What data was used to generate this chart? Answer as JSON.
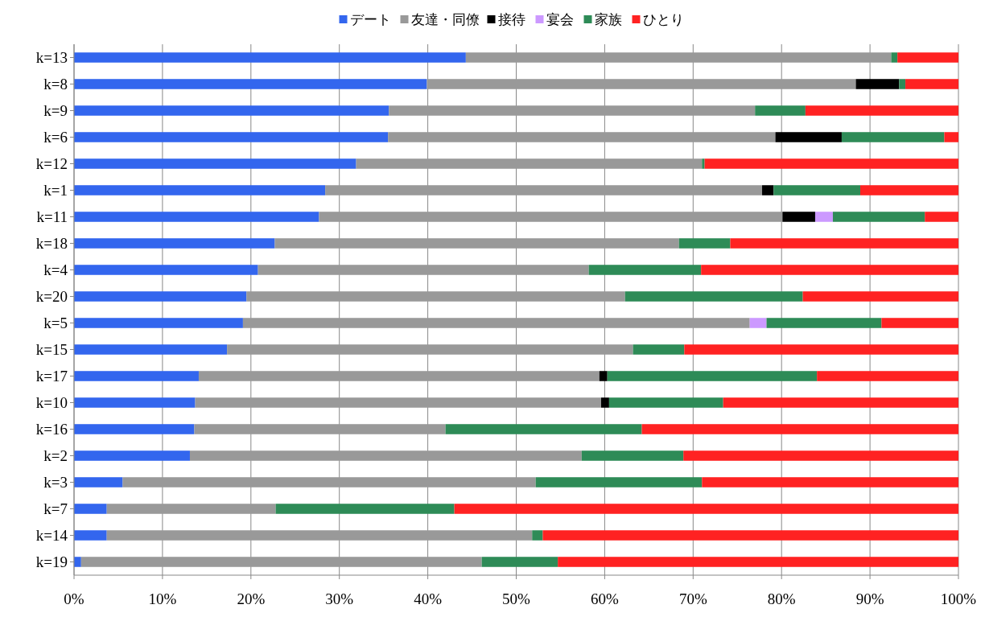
{
  "chart_data": {
    "type": "bar",
    "orientation": "horizontal",
    "stacked": true,
    "categories": [
      "k=13",
      "k=8",
      "k=9",
      "k=6",
      "k=12",
      "k=1",
      "k=11",
      "k=18",
      "k=4",
      "k=20",
      "k=5",
      "k=15",
      "k=17",
      "k=10",
      "k=16",
      "k=2",
      "k=3",
      "k=7",
      "k=14",
      "k=19"
    ],
    "series": [
      {
        "name": "デート",
        "color": "#3366ee",
        "values": [
          44.3,
          39.9,
          35.6,
          35.5,
          31.9,
          28.4,
          27.7,
          22.7,
          20.8,
          19.5,
          19.1,
          17.3,
          14.1,
          13.7,
          13.6,
          13.1,
          5.5,
          3.7,
          3.7,
          0.8
        ]
      },
      {
        "name": "友達・同僚",
        "color": "#999999",
        "values": [
          48.1,
          48.5,
          41.4,
          43.8,
          39.1,
          49.4,
          52.4,
          45.7,
          37.4,
          42.8,
          57.3,
          45.9,
          45.3,
          45.9,
          28.4,
          44.3,
          46.7,
          19.1,
          48.1,
          45.3
        ]
      },
      {
        "name": "接待",
        "color": "#000000",
        "values": [
          0,
          4.9,
          0,
          7.5,
          0,
          1.3,
          3.7,
          0,
          0,
          0,
          0,
          0,
          0.9,
          0.9,
          0,
          0,
          0,
          0,
          0,
          0
        ]
      },
      {
        "name": "宴会",
        "color": "#cc99ff",
        "values": [
          0,
          0,
          0,
          0,
          0,
          0,
          2.0,
          0,
          0,
          0,
          1.9,
          0,
          0,
          0,
          0,
          0,
          0,
          0,
          0,
          0
        ]
      },
      {
        "name": "家族",
        "color": "#2e8b57",
        "values": [
          0.7,
          0.7,
          5.7,
          11.6,
          0.3,
          9.8,
          10.4,
          5.8,
          12.7,
          20.1,
          13.0,
          5.8,
          23.7,
          12.9,
          22.2,
          11.5,
          18.8,
          20.2,
          1.2,
          8.6
        ]
      },
      {
        "name": "ひとり",
        "color": "#ff2222",
        "values": [
          6.9,
          6.0,
          17.3,
          1.6,
          28.7,
          11.1,
          3.8,
          25.8,
          29.1,
          17.6,
          8.7,
          31.0,
          16.0,
          26.6,
          35.8,
          31.1,
          29.0,
          57.0,
          47.0,
          45.3
        ]
      }
    ],
    "xlim": [
      0,
      100
    ],
    "xticks": [
      {
        "value": 0,
        "label": "0%"
      },
      {
        "value": 10,
        "label": "10%"
      },
      {
        "value": 20,
        "label": "20%"
      },
      {
        "value": 30,
        "label": "30%"
      },
      {
        "value": 40,
        "label": "40%"
      },
      {
        "value": 50,
        "label": "50%"
      },
      {
        "value": 60,
        "label": "60%"
      },
      {
        "value": 70,
        "label": "70%"
      },
      {
        "value": 80,
        "label": "80%"
      },
      {
        "value": 90,
        "label": "90%"
      },
      {
        "value": 100,
        "label": "100%"
      }
    ],
    "grid": "x",
    "legend": "top"
  }
}
